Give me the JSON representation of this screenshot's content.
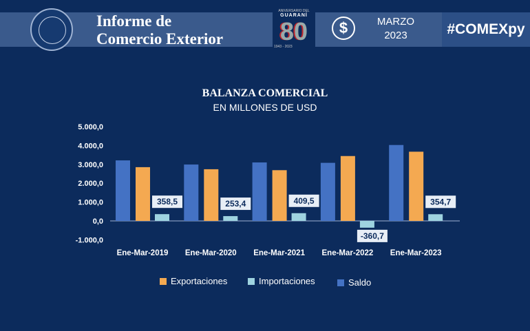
{
  "header": {
    "title_line1": "Informe de",
    "title_line2": "Comercio Exterior",
    "anniversary_sub": "ANIVERSARIO DEL",
    "anniversary_word": "GUARANÍ",
    "anniversary_number": "80",
    "anniversary_years": "1943 - 2023",
    "month": "MARZO",
    "year": "2023",
    "hashtag": "#COMEXpy"
  },
  "colors": {
    "background": "#0c2b5c",
    "blue": "#4472c4",
    "orange": "#f4a951",
    "lightblue": "#9ed3e0"
  },
  "chart_data": {
    "type": "bar",
    "title": "BALANZA COMERCIAL",
    "subtitle": "EN MILLONES DE USD",
    "categories": [
      "Ene-Mar-2019",
      "Ene-Mar-2020",
      "Ene-Mar-2021",
      "Ene-Mar-2022",
      "Ene-Mar-2023"
    ],
    "yticks": [
      "5.000,0",
      "4.000,0",
      "3.000,0",
      "2.000,0",
      "1.000,0",
      "0,0",
      "-1.000,0"
    ],
    "ylim": [
      -1000,
      5000
    ],
    "grid": false,
    "legend_position": "bottom",
    "series": [
      {
        "name": "Saldo",
        "color": "#4472c4",
        "values": [
          3210,
          2990,
          3100,
          3080,
          4025
        ]
      },
      {
        "name": "Exportaciones",
        "color": "#f4a951",
        "values": [
          2850,
          2740,
          2690,
          3440,
          3670
        ]
      },
      {
        "name": "Importaciones",
        "color": "#9ed3e0",
        "values": [
          358.5,
          253.4,
          409.5,
          -360.7,
          354.7
        ],
        "labels": [
          "358,5",
          "253,4",
          "409,5",
          "-360,7",
          "354,7"
        ]
      }
    ],
    "legend": [
      {
        "label": "Exportaciones",
        "color": "#f4a951"
      },
      {
        "label": "Importaciones",
        "color": "#9ed3e0"
      },
      {
        "label": "Saldo",
        "color": "#4472c4"
      }
    ]
  }
}
